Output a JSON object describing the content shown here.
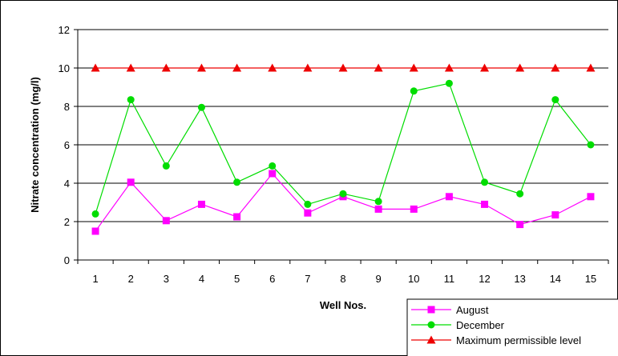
{
  "chart_data": {
    "type": "line",
    "xlabel": "Well Nos.",
    "ylabel": "Nitrate concentration (mg/l)",
    "ylim": [
      0,
      12
    ],
    "yticks": [
      0,
      2,
      4,
      6,
      8,
      10,
      12
    ],
    "categories": [
      "1",
      "2",
      "3",
      "4",
      "5",
      "6",
      "7",
      "8",
      "9",
      "10",
      "11",
      "12",
      "13",
      "14",
      "15"
    ],
    "grid": "horizontal",
    "legend_position": "bottom-right",
    "series": [
      {
        "name": "August",
        "color": "#ff00ff",
        "marker": "square",
        "values": [
          1.5,
          4.05,
          2.05,
          2.9,
          2.25,
          4.5,
          2.45,
          3.3,
          2.65,
          2.65,
          3.3,
          2.9,
          1.85,
          2.35,
          3.3
        ]
      },
      {
        "name": "December",
        "color": "#00dd00",
        "marker": "circle",
        "values": [
          2.4,
          8.35,
          4.9,
          7.95,
          4.05,
          4.9,
          2.9,
          3.45,
          3.05,
          8.8,
          9.2,
          4.05,
          3.45,
          8.35,
          6.0
        ]
      },
      {
        "name": "Maximum permissible level",
        "color": "#ee0000",
        "marker": "triangle",
        "values": [
          10,
          10,
          10,
          10,
          10,
          10,
          10,
          10,
          10,
          10,
          10,
          10,
          10,
          10,
          10
        ]
      }
    ]
  }
}
